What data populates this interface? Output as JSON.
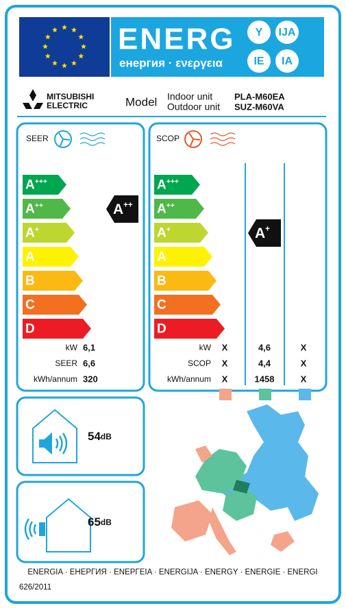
{
  "header": {
    "energy": "ENERG",
    "subtitle": "енергия · ενεργεια",
    "suffixes": [
      "Y",
      "IJA",
      "IE",
      "IA"
    ]
  },
  "supplier": {
    "brand_line1": "MITSUBISHI",
    "brand_line2": "ELECTRIC",
    "model_label": "Model",
    "units": [
      {
        "label": "Indoor unit",
        "model": "PLA-M60EA"
      },
      {
        "label": "Outdoor unit",
        "model": "SUZ-M60VA"
      }
    ]
  },
  "scale": [
    {
      "letter": "A",
      "sup": "+++"
    },
    {
      "letter": "A",
      "sup": "++"
    },
    {
      "letter": "A",
      "sup": "+"
    },
    {
      "letter": "A"
    },
    {
      "letter": "B"
    },
    {
      "letter": "C"
    },
    {
      "letter": "D"
    }
  ],
  "cooling": {
    "title": "SEER",
    "rating": {
      "letter": "A",
      "sup": "++"
    },
    "rows": [
      {
        "label": "kW",
        "value": "6,1"
      },
      {
        "label": "SEER",
        "value": "6,6"
      },
      {
        "label": "kWh/annum",
        "value": "320"
      }
    ]
  },
  "heating": {
    "title": "SCOP",
    "rating": {
      "letter": "A",
      "sup": "+"
    },
    "rows": [
      {
        "label": "kW",
        "values": [
          "X",
          "4,6",
          "X"
        ]
      },
      {
        "label": "SCOP",
        "values": [
          "X",
          "4,4",
          "X"
        ]
      },
      {
        "label": "kWh/annum",
        "values": [
          "X",
          "1458",
          "X"
        ]
      }
    ]
  },
  "noise_indoor": {
    "value": "54",
    "unit": "dB"
  },
  "noise_outdoor": {
    "value": "65",
    "unit": "dB"
  },
  "footer": {
    "languages": "ENERGIA · ЕНЕРГИЯ · ΕΝΕΡΓΕΙΑ · ENERGIJA · ENERGY · ENERGIE · ENERGI",
    "regulation": "626/2011"
  }
}
